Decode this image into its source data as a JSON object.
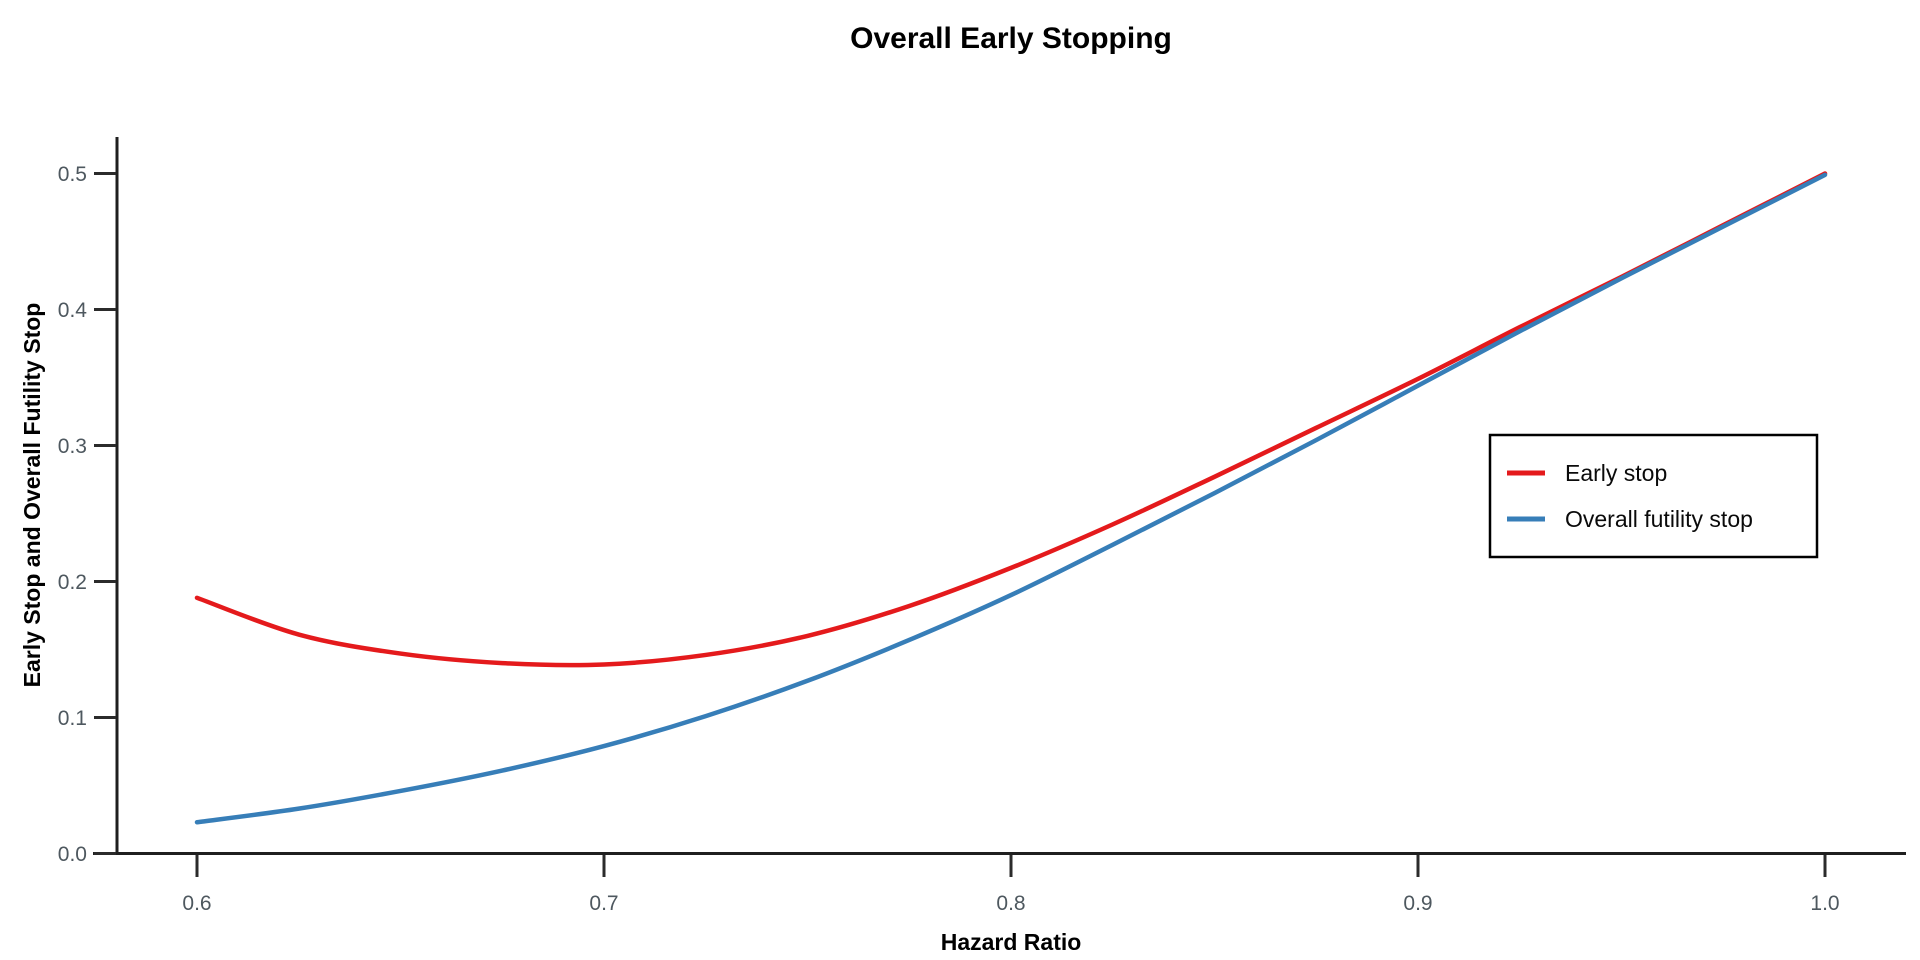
{
  "page": {
    "background": "#ffffff"
  },
  "chart": {
    "title": "Overall Early Stopping",
    "xlabel": "Hazard Ratio",
    "ylabel": "Early Stop and Overall Futility Stop"
  },
  "legend": {
    "items": [
      {
        "label": "Early stop",
        "color": "#E41A1C"
      },
      {
        "label": "Overall futility stop",
        "color": "#377EB8"
      }
    ]
  },
  "chart_data": {
    "type": "line",
    "title": "Overall Early Stopping",
    "xlabel": "Hazard Ratio",
    "ylabel": "Early Stop and Overall Futility Stop",
    "xlim": [
      0.6,
      1.0
    ],
    "ylim": [
      0.0,
      0.5
    ],
    "x_ticks": [
      0.6,
      0.7,
      0.8,
      0.9,
      1.0
    ],
    "x_tick_labels": [
      "0.6",
      "0.7",
      "0.8",
      "0.9",
      "1.0"
    ],
    "y_ticks": [
      0.0,
      0.1,
      0.2,
      0.3,
      0.4,
      0.5
    ],
    "y_tick_labels": [
      "0.0",
      "0.1",
      "0.2",
      "0.3",
      "0.4",
      "0.5"
    ],
    "grid": false,
    "legend_position": "right-middle",
    "x": [
      0.6,
      0.625,
      0.65,
      0.675,
      0.7,
      0.725,
      0.75,
      0.775,
      0.8,
      0.825,
      0.85,
      0.875,
      0.9,
      0.925,
      0.95,
      0.975,
      1.0
    ],
    "series": [
      {
        "name": "Early stop",
        "color": "#E41A1C",
        "values": [
          0.188,
          0.161,
          0.147,
          0.14,
          0.139,
          0.146,
          0.16,
          0.182,
          0.21,
          0.242,
          0.277,
          0.313,
          0.349,
          0.387,
          0.424,
          0.462,
          0.5
        ]
      },
      {
        "name": "Overall futility stop",
        "color": "#377EB8",
        "values": [
          0.023,
          0.033,
          0.046,
          0.061,
          0.079,
          0.101,
          0.127,
          0.157,
          0.19,
          0.227,
          0.265,
          0.304,
          0.344,
          0.384,
          0.423,
          0.461,
          0.499
        ]
      }
    ]
  }
}
